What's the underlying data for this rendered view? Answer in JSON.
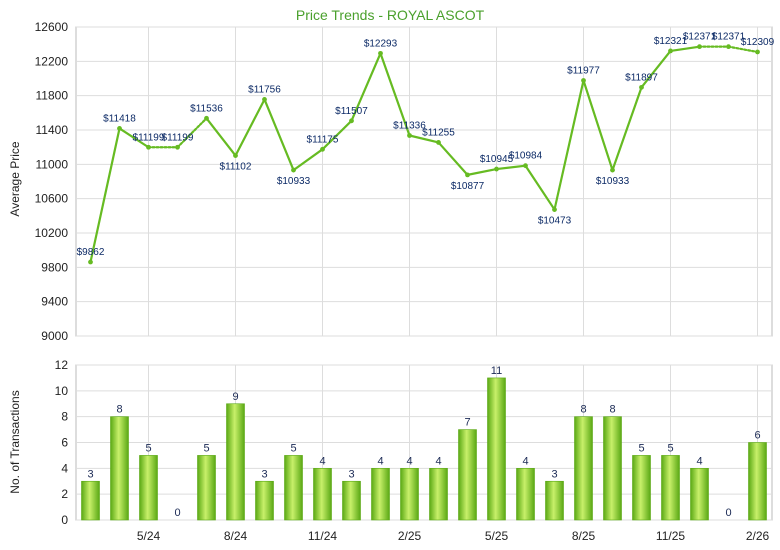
{
  "colors": {
    "line": "#66bb22",
    "bar_light": "#c8f06a",
    "bar_dark": "#5aa814",
    "title": "#4aa02c",
    "grid": "#dddddd",
    "frame": "#bbbbbb"
  },
  "chart_data": [
    {
      "type": "line",
      "title": "Price Trends - ROYAL ASCOT",
      "xlabel": "",
      "ylabel": "Average Price",
      "ylim": [
        9000,
        12600
      ],
      "yticks": [
        9000,
        9400,
        9800,
        10200,
        10600,
        11000,
        11400,
        11800,
        12200,
        12600
      ],
      "grid": true,
      "x": [
        "3/24",
        "4/24",
        "5/24",
        "6/24",
        "7/24",
        "8/24",
        "9/24",
        "10/24",
        "11/24",
        "12/24",
        "1/25",
        "2/25",
        "3/25",
        "4/25",
        "5/25",
        "6/25",
        "7/25",
        "8/25",
        "9/25",
        "10/25",
        "11/25",
        "12/25",
        "1/26",
        "2/26"
      ],
      "xtick_labels": [
        "5/24",
        "8/24",
        "11/24",
        "2/25",
        "5/25",
        "8/25",
        "11/25",
        "2/26"
      ],
      "values": [
        9862,
        11418,
        11199,
        11199,
        11536,
        11102,
        11756,
        10933,
        11175,
        11507,
        12293,
        11336,
        11255,
        10877,
        10945,
        10984,
        10473,
        11977,
        10933,
        11897,
        12321,
        12371,
        12371,
        12309
      ],
      "interpolated": [
        false,
        false,
        false,
        true,
        false,
        false,
        false,
        false,
        false,
        false,
        false,
        false,
        false,
        false,
        false,
        false,
        false,
        false,
        false,
        false,
        false,
        false,
        true,
        false
      ],
      "data_labels": [
        "$9862",
        "$11418",
        "$11199",
        "$11199",
        "$11536",
        "$11102",
        "$11756",
        "$10933",
        "$11175",
        "$11507",
        "$12293",
        "$11336",
        "$11255",
        "$10877",
        "$10945",
        "$10984",
        "$10473",
        "$11977",
        "$10933",
        "$11897",
        "$12321",
        "$12371",
        "$12371",
        "$12309"
      ]
    },
    {
      "type": "bar",
      "ylabel": "No. of Transactions",
      "ylim": [
        0,
        12
      ],
      "yticks": [
        0,
        2,
        4,
        6,
        8,
        10,
        12
      ],
      "grid": true,
      "x": [
        "3/24",
        "4/24",
        "5/24",
        "6/24",
        "7/24",
        "8/24",
        "9/24",
        "10/24",
        "11/24",
        "12/24",
        "1/25",
        "2/25",
        "3/25",
        "4/25",
        "5/25",
        "6/25",
        "7/25",
        "8/25",
        "9/25",
        "10/25",
        "11/25",
        "12/25",
        "1/26",
        "2/26"
      ],
      "xtick_labels": [
        "5/24",
        "8/24",
        "11/24",
        "2/25",
        "5/25",
        "8/25",
        "11/25",
        "2/26"
      ],
      "values": [
        3,
        8,
        5,
        0,
        5,
        9,
        3,
        5,
        4,
        3,
        4,
        4,
        4,
        7,
        11,
        4,
        3,
        8,
        8,
        5,
        5,
        4,
        0,
        6
      ]
    }
  ]
}
